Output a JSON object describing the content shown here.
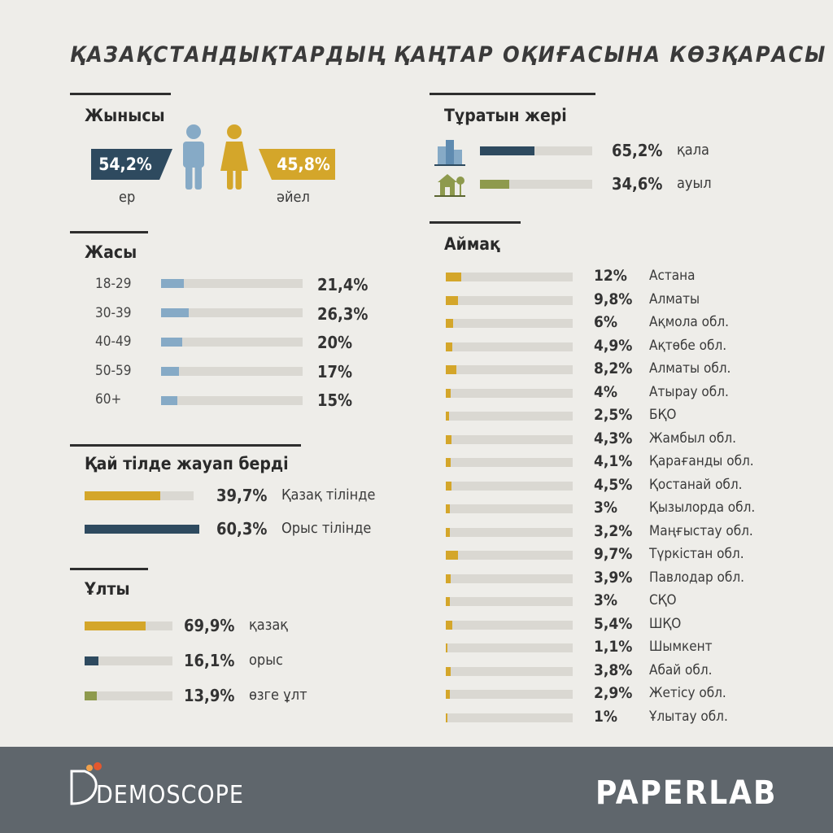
{
  "title": "ҚАЗАҚСТАНДЫҚТАРДЫҢ ҚАҢТАР ОҚИҒАСЫНА КӨЗҚАРАСЫ",
  "colors": {
    "navy": "#2e4a5f",
    "gold": "#d4a62a",
    "lightblue": "#86aac6",
    "olive": "#8e9a4d",
    "track": "#dad8d2",
    "footer": "#5f666c"
  },
  "gender": {
    "heading": "Жынысы",
    "male_pct": "54,2%",
    "male_label": "ер",
    "female_pct": "45,8%",
    "female_label": "әйел",
    "male_icon": "man-icon",
    "female_icon": "woman-icon"
  },
  "residence": {
    "heading": "Тұратын жері",
    "items": [
      {
        "pct": "65,2%",
        "label": "қала",
        "icon": "city-buildings-icon"
      },
      {
        "pct": "34,6%",
        "label": "ауыл",
        "icon": "village-house-icon"
      }
    ]
  },
  "age": {
    "heading": "Жасы",
    "items": [
      {
        "label": "18-29",
        "pct": "21,4%"
      },
      {
        "label": "30-39",
        "pct": "26,3%"
      },
      {
        "label": "40-49",
        "pct": "20%"
      },
      {
        "label": "50-59",
        "pct": "17%"
      },
      {
        "label": "60+",
        "pct": "15%"
      }
    ]
  },
  "language": {
    "heading": "Қай тілде жауап берді",
    "items": [
      {
        "pct": "39,7%",
        "label": "Қазақ тілінде"
      },
      {
        "pct": "60,3%",
        "label": "Орыс тілінде"
      }
    ]
  },
  "ethnicity": {
    "heading": "Ұлты",
    "items": [
      {
        "pct": "69,9%",
        "label": "қазақ"
      },
      {
        "pct": "16,1%",
        "label": "орыс"
      },
      {
        "pct": "13,9%",
        "label": "өзге ұлт"
      }
    ]
  },
  "region": {
    "heading": "Аймақ",
    "items": [
      {
        "pct": "12%",
        "label": "Астана"
      },
      {
        "pct": "9,8%",
        "label": "Алматы"
      },
      {
        "pct": "6%",
        "label": "Ақмола обл."
      },
      {
        "pct": "4,9%",
        "label": "Ақтөбе обл."
      },
      {
        "pct": "8,2%",
        "label": "Алматы обл."
      },
      {
        "pct": "4%",
        "label": "Атырау обл."
      },
      {
        "pct": "2,5%",
        "label": "БҚО"
      },
      {
        "pct": "4,3%",
        "label": "Жамбыл обл."
      },
      {
        "pct": "4,1%",
        "label": "Қарағанды обл."
      },
      {
        "pct": "4,5%",
        "label": "Қостанай обл."
      },
      {
        "pct": "3%",
        "label": "Қызылорда обл."
      },
      {
        "pct": "3,2%",
        "label": "Маңғыстау обл."
      },
      {
        "pct": "9,7%",
        "label": "Түркістан обл."
      },
      {
        "pct": "3,9%",
        "label": "Павлодар обл."
      },
      {
        "pct": "3%",
        "label": "СҚО"
      },
      {
        "pct": "5,4%",
        "label": "ШҚО"
      },
      {
        "pct": "1,1%",
        "label": "Шымкент"
      },
      {
        "pct": "3,8%",
        "label": "Абай обл."
      },
      {
        "pct": "2,9%",
        "label": "Жетісу обл."
      },
      {
        "pct": "1%",
        "label": "Ұлытау обл."
      }
    ]
  },
  "footer": {
    "left_logo": "DEMOSCOPE",
    "right_logo": "PAPERLAB"
  },
  "chart_data": [
    {
      "type": "bar",
      "title": "Жынысы",
      "categories": [
        "ер",
        "әйел"
      ],
      "values": [
        54.2,
        45.8
      ]
    },
    {
      "type": "bar",
      "title": "Тұратын жері",
      "categories": [
        "қала",
        "ауыл"
      ],
      "values": [
        65.2,
        34.6
      ]
    },
    {
      "type": "bar",
      "title": "Жасы",
      "categories": [
        "18-29",
        "30-39",
        "40-49",
        "50-59",
        "60+"
      ],
      "values": [
        21.4,
        26.3,
        20,
        17,
        15
      ]
    },
    {
      "type": "bar",
      "title": "Қай тілде жауап берді",
      "categories": [
        "Қазақ тілінде",
        "Орыс тілінде"
      ],
      "values": [
        39.7,
        60.3
      ]
    },
    {
      "type": "bar",
      "title": "Ұлты",
      "categories": [
        "қазақ",
        "орыс",
        "өзге ұлт"
      ],
      "values": [
        69.9,
        16.1,
        13.9
      ]
    },
    {
      "type": "bar",
      "title": "Аймақ",
      "categories": [
        "Астана",
        "Алматы",
        "Ақмола обл.",
        "Ақтөбе обл.",
        "Алматы обл.",
        "Атырау обл.",
        "БҚО",
        "Жамбыл обл.",
        "Қарағанды обл.",
        "Қостанай обл.",
        "Қызылорда обл.",
        "Маңғыстау обл.",
        "Түркістан обл.",
        "Павлодар обл.",
        "СҚО",
        "ШҚО",
        "Шымкент",
        "Абай обл.",
        "Жетісу обл.",
        "Ұлытау обл."
      ],
      "values": [
        12,
        9.8,
        6,
        4.9,
        8.2,
        4,
        2.5,
        4.3,
        4.1,
        4.5,
        3,
        3.2,
        9.7,
        3.9,
        3,
        5.4,
        1.1,
        3.8,
        2.9,
        1
      ]
    }
  ]
}
